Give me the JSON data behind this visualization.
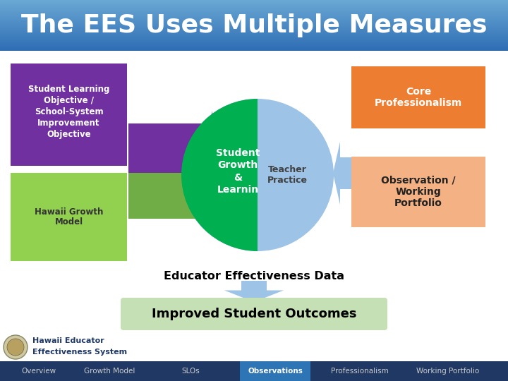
{
  "title": "The EES Uses Multiple Measures",
  "title_color": "#ffffff",
  "title_fontsize": 26,
  "bg_color": "#ffffff",
  "purple_box_color": "#7030a0",
  "green_box_color": "#92d050",
  "green_circle_color": "#00b050",
  "blue_circle_color": "#9dc3e6",
  "orange_box_color": "#ed7d31",
  "peach_box_color": "#f4b183",
  "purple_arrow_color": "#7030a0",
  "green_arrow_color": "#70ad47",
  "blue_arrow_color": "#9dc3e6",
  "slo_box_text": "Student Learning\nObjective /\nSchool-System\nImprovement\nObjective",
  "hawaii_box_text": "Hawaii Growth\nModel",
  "growth_circle_text": "Student\nGrowth\n&\nLearnin",
  "teacher_circle_text": "Teacher\nPractice",
  "core_box_text": "Core\nProfessionalism",
  "observation_box_text": "Observation /\nWorking\nPortfolio",
  "educator_data_text": "Educator Effectiveness Data",
  "improved_outcomes_text": "Improved Student Outcomes",
  "improved_bg": "#c5e0b4",
  "nav_bg": "#1f3864",
  "nav_items": [
    "Overview",
    "Growth Model",
    "SLOs",
    "Observations",
    "Professionalism",
    "Working Portfolio"
  ],
  "nav_active": "Observations",
  "nav_active_color": "#2e75b6",
  "logo_text1": "Hawaii Educator",
  "logo_text2": "Effectiveness System"
}
